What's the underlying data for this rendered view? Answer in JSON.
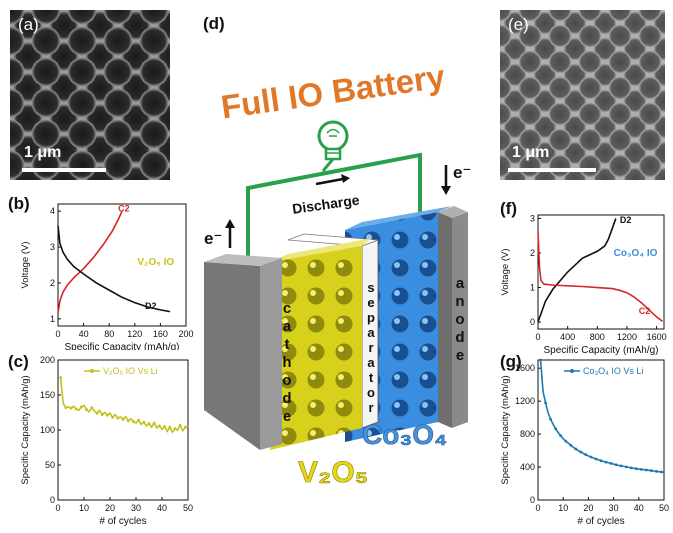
{
  "panels": {
    "a": {
      "letter": "(a)",
      "scale": "1 μm"
    },
    "e": {
      "letter": "(e)",
      "scale": "1 μm"
    },
    "b": {
      "letter": "(b)"
    },
    "c": {
      "letter": "(c)"
    },
    "d": {
      "letter": "(d)"
    },
    "f": {
      "letter": "(f)"
    },
    "g": {
      "letter": "(g)"
    }
  },
  "battery": {
    "title": "Full IO Battery",
    "discharge": "Discharge",
    "electron_left": "e⁻",
    "electron_right": "e⁻",
    "cathode": "cathode",
    "separator": "separator",
    "anode": "anode",
    "cathode_material": "V₂O₅",
    "anode_material": "Co₃O₄",
    "colors": {
      "title": "#e0782a",
      "wire": "#2aa04a",
      "v2o5": "#c9c21a",
      "co3o4": "#3a8ee0",
      "v2o5_text": "#e6d61a",
      "co3o4_text": "#4a90d9"
    }
  },
  "chart_data": [
    {
      "id": "b",
      "type": "line",
      "xlabel": "Specific Capacity (mAh/g)",
      "ylabel": "Voltage (V)",
      "xlim": [
        0,
        200
      ],
      "ylim": [
        0.8,
        4.2
      ],
      "xticks": [
        0,
        40,
        80,
        120,
        160,
        200
      ],
      "yticks": [
        1.0,
        2.0,
        3.0,
        4.0
      ],
      "annotation": "V₂O₅ IO",
      "series": [
        {
          "name": "C2",
          "color": "#d62728",
          "x": [
            0,
            3,
            8,
            15,
            25,
            40,
            55,
            70,
            85,
            95,
            100
          ],
          "y": [
            1.15,
            1.5,
            1.75,
            1.95,
            2.15,
            2.4,
            2.7,
            3.05,
            3.45,
            3.8,
            4.0
          ]
        },
        {
          "name": "D2",
          "color": "#111111",
          "x": [
            0,
            3,
            8,
            15,
            25,
            40,
            60,
            80,
            100,
            120,
            140,
            160,
            175
          ],
          "y": [
            3.6,
            3.1,
            2.85,
            2.65,
            2.45,
            2.25,
            2.0,
            1.8,
            1.6,
            1.45,
            1.33,
            1.25,
            1.2
          ]
        }
      ]
    },
    {
      "id": "c",
      "type": "line",
      "xlabel": "# of cycles",
      "ylabel": "Specific Capacity (mAh/g)",
      "xlim": [
        0,
        50
      ],
      "ylim": [
        0,
        200
      ],
      "xticks": [
        0,
        10,
        20,
        30,
        40,
        50
      ],
      "yticks": [
        0,
        50,
        100,
        150,
        200
      ],
      "series": [
        {
          "name": "V₂O₅ IO Vs Li",
          "color": "#c2c21a",
          "x": [
            1,
            2,
            3,
            4,
            5,
            6,
            7,
            8,
            9,
            10,
            11,
            12,
            13,
            14,
            15,
            16,
            17,
            18,
            19,
            20,
            21,
            22,
            23,
            24,
            25,
            26,
            27,
            28,
            29,
            30,
            31,
            32,
            33,
            34,
            35,
            36,
            37,
            38,
            39,
            40,
            41,
            42,
            43,
            44,
            45,
            46,
            47,
            48,
            49,
            50
          ],
          "y": [
            175,
            138,
            132,
            133,
            131,
            134,
            130,
            128,
            133,
            135,
            129,
            126,
            132,
            127,
            124,
            128,
            122,
            125,
            121,
            124,
            118,
            122,
            117,
            119,
            115,
            119,
            113,
            116,
            112,
            110,
            114,
            108,
            111,
            106,
            109,
            104,
            110,
            103,
            106,
            101,
            105,
            98,
            104,
            97,
            102,
            100,
            107,
            99,
            104,
            106
          ]
        }
      ]
    },
    {
      "id": "f",
      "type": "line",
      "xlabel": "Specific Capacity (mAh/g)",
      "ylabel": "Voltage (V)",
      "xlim": [
        0,
        1700
      ],
      "ylim": [
        -0.2,
        3.1
      ],
      "xticks": [
        0,
        400,
        800,
        1200,
        1600
      ],
      "yticks": [
        0.0,
        1.0,
        2.0,
        3.0
      ],
      "annotation": "Co₃O₄ IO",
      "series": [
        {
          "name": "D2",
          "color": "#111111",
          "x": [
            0,
            50,
            100,
            200,
            300,
            400,
            500,
            600,
            700,
            800,
            900,
            950,
            1000,
            1050
          ],
          "y": [
            0.0,
            0.3,
            0.6,
            0.95,
            1.2,
            1.45,
            1.65,
            1.85,
            1.95,
            2.05,
            2.2,
            2.4,
            2.7,
            3.0
          ]
        },
        {
          "name": "C2",
          "color": "#d62728",
          "x": [
            0,
            20,
            40,
            80,
            200,
            400,
            600,
            800,
            1000,
            1100,
            1200,
            1300,
            1400,
            1500,
            1600,
            1680
          ],
          "y": [
            2.6,
            1.6,
            1.2,
            1.1,
            1.07,
            1.05,
            1.03,
            1.0,
            0.97,
            0.92,
            0.85,
            0.72,
            0.55,
            0.35,
            0.15,
            0.02
          ]
        }
      ]
    },
    {
      "id": "g",
      "type": "line",
      "xlabel": "# of cycles",
      "ylabel": "Specific Capacity (mAh/g)",
      "xlim": [
        0,
        50
      ],
      "ylim": [
        0,
        1700
      ],
      "xticks": [
        0,
        10,
        20,
        30,
        40,
        50
      ],
      "yticks": [
        0,
        400,
        800,
        1200,
        1600
      ],
      "series": [
        {
          "name": "Co₃O₄ IO Vs Li",
          "color": "#1f77b4",
          "x": [
            1,
            2,
            3,
            4,
            5,
            6,
            7,
            8,
            9,
            10,
            11,
            12,
            13,
            14,
            15,
            16,
            17,
            18,
            19,
            20,
            21,
            22,
            23,
            24,
            25,
            26,
            27,
            28,
            29,
            30,
            31,
            32,
            33,
            34,
            35,
            36,
            37,
            38,
            39,
            40,
            41,
            42,
            43,
            44,
            45,
            46,
            47,
            48,
            49,
            50
          ],
          "y": [
            1700,
            1320,
            1180,
            1060,
            980,
            920,
            865,
            820,
            780,
            745,
            715,
            690,
            665,
            640,
            620,
            600,
            583,
            566,
            550,
            535,
            522,
            510,
            498,
            488,
            478,
            468,
            460,
            452,
            444,
            436,
            428,
            420,
            414,
            408,
            402,
            396,
            390,
            385,
            380,
            376,
            372,
            368,
            364,
            360,
            356,
            352,
            348,
            344,
            340,
            336
          ]
        }
      ]
    }
  ]
}
